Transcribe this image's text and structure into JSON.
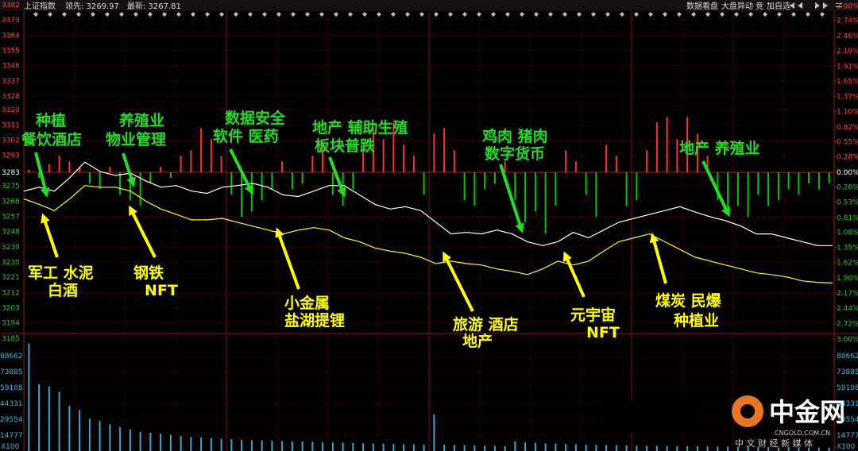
{
  "header": {
    "index_name": "上证指数",
    "lead": "领先: 3269.97",
    "latest": "最新: 3267.81",
    "tools": [
      "数据看盘",
      "大盘异动",
      "竞",
      "加自选"
    ]
  },
  "chart_data": {
    "type": "line",
    "ylim": [
      3184.5,
      3382
    ],
    "yticks": [
      3382,
      3373,
      3364,
      3355,
      3346,
      3337,
      3328,
      3320,
      3311,
      3302,
      3293,
      3283,
      3275,
      3266,
      3257,
      3248,
      3239,
      3230,
      3221,
      3212,
      3203,
      3194,
      3185
    ],
    "y2lim": [
      -3.0,
      3.02
    ],
    "y2ticks": [
      {
        "value": 3.0,
        "label": "3.00%"
      },
      {
        "value": 2.74,
        "label": "2.74%"
      },
      {
        "value": 2.46,
        "label": "2.46%"
      },
      {
        "value": 2.19,
        "label": "2.19%"
      },
      {
        "value": 1.91,
        "label": "1.91%"
      },
      {
        "value": 1.65,
        "label": "1.65%"
      },
      {
        "value": 1.37,
        "label": "1.37%"
      },
      {
        "value": 1.1,
        "label": "1.10%"
      },
      {
        "value": 0.82,
        "label": "0.82%"
      },
      {
        "value": 0.55,
        "label": "0.55%"
      },
      {
        "value": 0.28,
        "label": "0.28%"
      },
      {
        "value": 0,
        "label": "0.00%"
      },
      {
        "value": -0.26,
        "label": "0.26%"
      },
      {
        "value": -0.53,
        "label": "0.53%"
      },
      {
        "value": -0.81,
        "label": "0.81%"
      },
      {
        "value": -1.08,
        "label": "1.08%"
      },
      {
        "value": -1.35,
        "label": "1.35%"
      },
      {
        "value": -1.62,
        "label": "1.62%"
      },
      {
        "value": -1.9,
        "label": "1.90%"
      },
      {
        "value": -2.17,
        "label": "2.17%"
      },
      {
        "value": -2.44,
        "label": "2.44%"
      },
      {
        "value": -2.72,
        "label": "2.72%"
      },
      {
        "value": -3.0,
        "label": "3.00%"
      }
    ],
    "series": [
      {
        "color": "#ffffff",
        "values": [
          3271.9,
          3274.2,
          3271.9,
          3279.8,
          3289.0,
          3283.5,
          3281.2,
          3282.5,
          3277.9,
          3274.2,
          3275.2,
          3271.9,
          3270.6,
          3274.2,
          3275.2,
          3276.5,
          3274.2,
          3269.6,
          3268.7,
          3271.9,
          3275.2,
          3275.2,
          3269.6,
          3264.1,
          3261.3,
          3262.7,
          3260.4,
          3253.5,
          3246.6,
          3247.5,
          3246.6,
          3248.9,
          3246.6,
          3242.0,
          3239.7,
          3242.0,
          3247.5,
          3244.3,
          3248.9,
          3253.5,
          3255.8,
          3258.1,
          3260.4,
          3262.7,
          3259.5,
          3256.7,
          3254.4,
          3251.2,
          3246.6,
          3246.6,
          3244.3,
          3242.0,
          3239.7,
          3239.7
        ]
      },
      {
        "color": "#ffff00",
        "values": [
          3267.3,
          3264.1,
          3260.4,
          3267.3,
          3275.2,
          3274.2,
          3274.2,
          3271.9,
          3265.9,
          3261.3,
          3258.1,
          3254.9,
          3254.9,
          3255.8,
          3253.5,
          3251.2,
          3248.9,
          3246.6,
          3248.9,
          3250.3,
          3248.9,
          3244.3,
          3242.0,
          3238.3,
          3236.5,
          3235.1,
          3232.8,
          3229.1,
          3230.5,
          3229.1,
          3228.2,
          3225.9,
          3224.5,
          3222.6,
          3225.9,
          3230.5,
          3228.2,
          3230.5,
          3236.5,
          3242.0,
          3244.3,
          3246.6,
          3242.0,
          3237.4,
          3232.8,
          3230.5,
          3228.2,
          3225.9,
          3223.6,
          3222.6,
          3221.2,
          3218.9,
          3218.0,
          3217.6
        ]
      },
      {
        "type": "bar",
        "axis": "y2",
        "up_color": "#ff3030",
        "down_color": "#00c800",
        "values": [
          0.05,
          -0.1,
          0.15,
          0.3,
          0.2,
          0.1,
          -0.2,
          -0.3,
          0.1,
          -0.4,
          -0.5,
          -0.6,
          -0.2,
          0.1,
          -0.1,
          0.3,
          0.4,
          0.8,
          0.6,
          0.3,
          -0.4,
          -0.8,
          -0.7,
          -0.5,
          -0.3,
          0.2,
          -0.3,
          -0.2,
          0.3,
          0.5,
          -0.4,
          -0.6,
          -0.3,
          0.4,
          0.8,
          0.6,
          0.9,
          0.5,
          0.3,
          -0.4,
          0.7,
          0.8,
          0.4,
          -0.5,
          -0.6,
          -0.3,
          -0.2,
          0.2,
          -0.5,
          -0.9,
          -0.7,
          -1.1,
          -0.6,
          0.4,
          0.2,
          -0.4,
          -0.8,
          0.5,
          0.3,
          -0.6,
          -0.5,
          0.4,
          0.9,
          1.0,
          0.6,
          1.0,
          0.7,
          0.3,
          -0.5,
          -0.7,
          -0.6,
          -0.8,
          -0.4,
          -0.6,
          -0.5,
          -0.3,
          -0.4,
          -0.2,
          -0.3,
          -0.2
        ]
      }
    ],
    "volume": {
      "type": "bar",
      "color": "#3aa6cf",
      "ylim": [
        0,
        103439
      ],
      "yticks": [
        14777,
        29554,
        44331,
        59108,
        73885,
        88662
      ],
      "unit_label": "X100",
      "values": [
        100000,
        62000,
        60000,
        55000,
        42000,
        38000,
        30000,
        28000,
        25000,
        22000,
        20000,
        18000,
        17000,
        16000,
        15000,
        14000,
        13000,
        12500,
        12000,
        11500,
        11000,
        10500,
        10000,
        9800,
        9500,
        9200,
        9000,
        8800,
        8500,
        8200,
        8000,
        7800,
        7500,
        7200,
        7000,
        6800,
        6600,
        6400,
        6200,
        6000,
        34000,
        5800,
        5600,
        5400,
        5200,
        5000,
        4800,
        4600,
        9000,
        8000,
        7500,
        7000,
        6800,
        6500,
        6200,
        6000,
        5800,
        5600,
        5400,
        5200,
        5000,
        4900,
        4800,
        4700,
        4600,
        4500,
        4400,
        4300,
        4200,
        4100,
        4000,
        3900,
        3800,
        3700,
        3600,
        3500,
        3400,
        3300,
        3200,
        3100
      ]
    },
    "annotations": [
      {
        "color": "#22dd22",
        "lines": [
          "种植",
          "餐饮酒店"
        ]
      },
      {
        "color": "#22dd22",
        "lines": [
          "养殖业",
          "物业管理"
        ]
      },
      {
        "color": "#22dd22",
        "lines": [
          "数据安全",
          "软件 医药"
        ]
      },
      {
        "color": "#22dd22",
        "lines": [
          "地产 辅助生殖",
          "板块普跌"
        ]
      },
      {
        "color": "#22dd22",
        "lines": [
          "鸡肉 猪肉",
          "数字货币"
        ]
      },
      {
        "color": "#22dd22",
        "lines": [
          "地产 养殖业"
        ]
      },
      {
        "color": "#ffff00",
        "lines": [
          "军工 水泥",
          "白酒"
        ]
      },
      {
        "color": "#ffff00",
        "lines": [
          "钢铁",
          "NFT"
        ]
      },
      {
        "color": "#ffff00",
        "lines": [
          "小金属",
          "盐湖提锂"
        ]
      },
      {
        "color": "#ffff00",
        "lines": [
          "旅游 酒店",
          "地产"
        ]
      },
      {
        "color": "#ffff00",
        "lines": [
          "元宇宙",
          "NFT"
        ]
      },
      {
        "color": "#ffff00",
        "lines": [
          "煤炭 民爆",
          "种植业"
        ]
      }
    ]
  },
  "watermark": {
    "brand": "中金网",
    "site": "CNGOLD.COM.CN",
    "slogan": "中 文 财 经 新 媒 体"
  }
}
